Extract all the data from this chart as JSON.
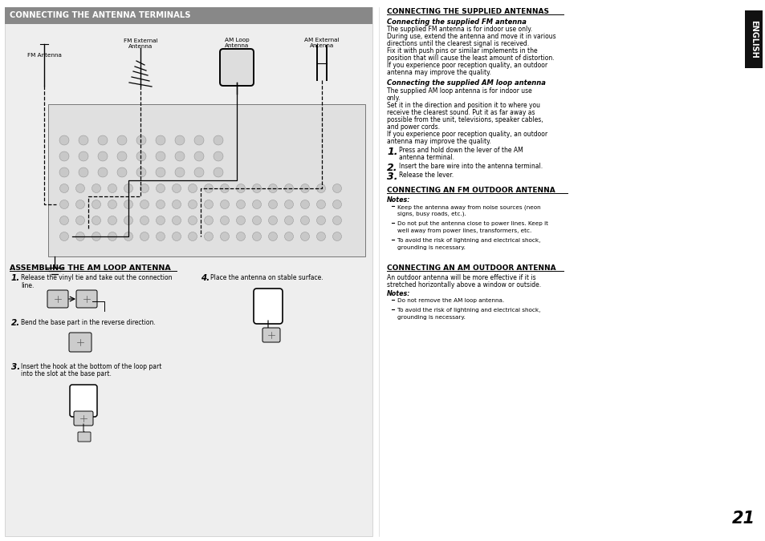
{
  "page_bg": "#ffffff",
  "left_panel_bg": "#eeeeee",
  "header_bg": "#888888",
  "page_number": "21",
  "english_tab_bg": "#111111",
  "english_tab_text": "ENGLISH",
  "section1_title": "CONNECTING THE ANTENNA TERMINALS",
  "section2_title": "ASSEMBLING THE AM LOOP ANTENNA",
  "section3_title": "CONNECTING THE SUPPLIED ANTENNAS",
  "section4_title": "CONNECTING AN FM OUTDOOR ANTENNA",
  "section5_title": "CONNECTING AN AM OUTDOOR ANTENNA",
  "fm_antenna_label": "FM Antenna",
  "fm_ext_label": "FM External\nAntenna",
  "am_loop_label": "AM Loop\nAntenna",
  "am_ext_label": "AM External\nAntenna",
  "fm_subtitle": "Connecting the supplied FM antenna",
  "fm_text_lines": [
    "The supplied FM antenna is for indoor use only.",
    "During use, extend the antenna and move it in various",
    "directions until the clearest signal is received.",
    "Fix it with push pins or similar implements in the",
    "position that will cause the least amount of distortion.",
    "If you experience poor reception quality, an outdoor",
    "antenna may improve the quality."
  ],
  "am_subtitle": "Connecting the supplied AM loop antenna",
  "am_text_lines": [
    "The supplied AM loop antenna is for indoor use",
    "only.",
    "Set it in the direction and position it to where you",
    "receive the clearest sound. Put it as far away as",
    "possible from the unit, televisions, speaker cables,",
    "and power cords.",
    "If you experience poor reception quality, an outdoor",
    "antenna may improve the quality."
  ],
  "am_steps": [
    [
      "1.",
      "Press and hold down the lever of the AM",
      "antenna terminal."
    ],
    [
      "2.",
      "Insert the bare wire into the antenna terminal."
    ],
    [
      "3.",
      "Release the lever."
    ]
  ],
  "fm_outdoor_notes_title": "Notes:",
  "fm_outdoor_notes": [
    [
      "Keep the antenna away from noise sources (neon",
      "signs, busy roads, etc.)."
    ],
    [
      "Do not put the antenna close to power lines. Keep it",
      "well away from power lines, transformers, etc."
    ],
    [
      "To avoid the risk of lightning and electrical shock,",
      "grounding is necessary."
    ]
  ],
  "am_outdoor_text_lines": [
    "An outdoor antenna will be more effective if it is",
    "stretched horizontally above a window or outside."
  ],
  "am_outdoor_notes_title": "Notes:",
  "am_outdoor_notes": [
    [
      "Do not remove the AM loop antenna."
    ],
    [
      "To avoid the risk of lightning and electrical shock,",
      "grounding is necessary."
    ]
  ],
  "assemble_step1": "Release the vinyl tie and take out the connection\nline.",
  "assemble_step2": "Bend the base part in the reverse direction.",
  "assemble_step3": "Insert the hook at the bottom of the loop part\ninto the slot at the base part.",
  "assemble_step4": "Place the antenna on stable surface."
}
